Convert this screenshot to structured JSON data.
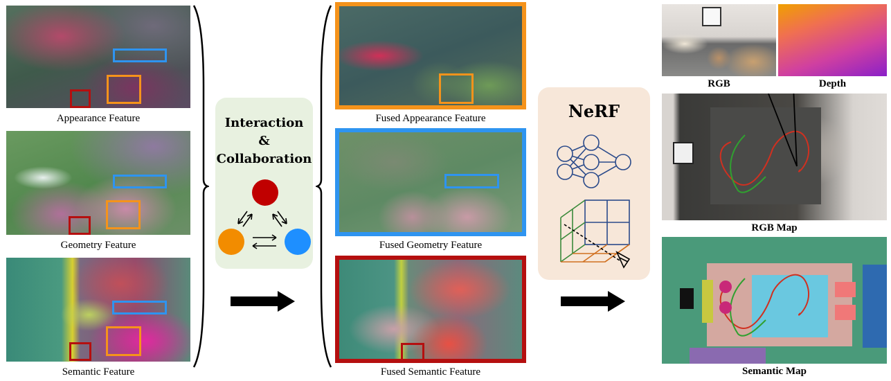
{
  "left_features": [
    {
      "label": "Appearance Feature",
      "base": "#4f6a58"
    },
    {
      "label": "Geometry Feature",
      "base": "#5c8a5a"
    },
    {
      "label": "Semantic Feature",
      "base": "#4a8a6c"
    }
  ],
  "interaction": {
    "line1": "Interaction",
    "line2": "&",
    "line3": "Collaboration",
    "node_colors": [
      "#c00000",
      "#f28c00",
      "#1e8fff"
    ]
  },
  "fused_features": [
    {
      "label": "Fused Appearance Feature",
      "frame": "#f5931b"
    },
    {
      "label": "Fused Geometry Feature",
      "frame": "#2e94f0"
    },
    {
      "label": "Fused Semantic Feature",
      "frame": "#b50f0f"
    }
  ],
  "nerf": {
    "title": "NeRF"
  },
  "outputs": {
    "rgb": "RGB",
    "depth": "Depth",
    "rgb_map": "RGB Map",
    "semantic_map": "Semantic Map"
  },
  "colors": {
    "orange": "#f5931b",
    "blue": "#2e94f0",
    "red": "#b50f0f",
    "panel_green": "#e8f1e0",
    "panel_peach": "#f7e7d9"
  }
}
